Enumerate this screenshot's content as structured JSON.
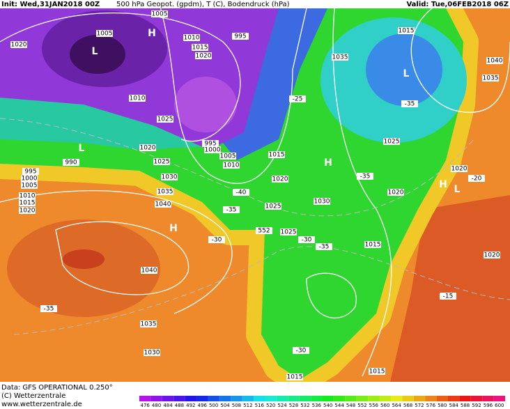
{
  "header": {
    "init": "Init: Wed,31JAN2018 00Z",
    "fields": "500 hPa Geopot. (gpdm), T (C), Bodendruck (hPa)",
    "valid": "Valid: Tue,06FEB2018 06Z"
  },
  "footer": {
    "data": "Data: GFS OPERATIONAL 0.250°",
    "copyright": "(C) Wetterzentrale",
    "url": "www.wetterzentrale.de"
  },
  "colorbar": [
    476,
    480,
    484,
    488,
    492,
    496,
    500,
    504,
    508,
    512,
    516,
    520,
    524,
    528,
    532,
    536,
    540,
    544,
    548,
    552,
    556,
    560,
    564,
    568,
    572,
    576,
    580,
    584,
    588,
    592,
    596,
    600
  ],
  "map_labels": [
    "1005",
    "1005",
    "H",
    "1010",
    "995",
    "1020",
    "1015",
    "1020",
    "L",
    "1015",
    "L",
    "1035",
    "1040",
    "1035",
    "1010",
    "-35",
    "1025",
    "995",
    "1000",
    "1005",
    "1010",
    "1020",
    "1025",
    "1015",
    "L",
    "990",
    "995",
    "1000",
    "1005",
    "1030",
    "1020",
    "H",
    "1025",
    "1020",
    "H",
    "L",
    "1035",
    "1040",
    "1010",
    "1015",
    "1020",
    "H",
    "1025",
    "1030",
    "1020",
    "1025",
    "1015",
    "1020",
    "1040",
    "1035",
    "1030",
    "1015",
    "1015",
    "552",
    "-30",
    "-35",
    "-15",
    "-20",
    "-25",
    "-35",
    "-40",
    "-35",
    "-30",
    "-35",
    "-30"
  ]
}
